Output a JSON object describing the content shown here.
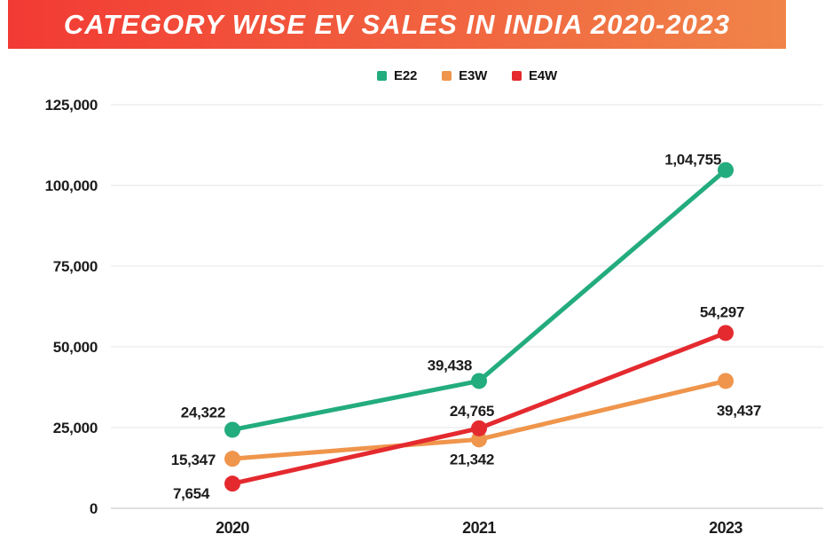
{
  "banner": {
    "gradient_left": "#f23a34",
    "gradient_right": "#f08448"
  },
  "chart_data": {
    "type": "line",
    "title": "CATEGORY WISE EV SALES IN INDIA 2020-2023",
    "categories": [
      "2020",
      "2021",
      "2023"
    ],
    "xlabel": "",
    "ylabel": "",
    "ylim": [
      0,
      125000
    ],
    "yticks": [
      0,
      25000,
      50000,
      75000,
      100000,
      125000
    ],
    "ytick_labels": [
      "0",
      "25,000",
      "50,000",
      "75,000",
      "100,000",
      "125,000"
    ],
    "grid": true,
    "legend_position": "top-center",
    "series": [
      {
        "name": "E22",
        "color": "#23ac7e",
        "label_color": "#1c1c1c",
        "values": [
          24322,
          39438,
          104755
        ],
        "labels": [
          "24,322",
          "39,438",
          "1,04,755"
        ],
        "label_anchor": [
          "end",
          "end",
          "end"
        ],
        "label_offset": [
          [
            -8,
            -14
          ],
          [
            -8,
            -12
          ],
          [
            -5,
            -6
          ]
        ]
      },
      {
        "name": "E3W",
        "color": "#ef954c",
        "label_color": "#eda25f",
        "values": [
          15347,
          21342,
          39437
        ],
        "labels": [
          "15,347",
          "21,342",
          "39,437"
        ],
        "label_anchor": [
          "end",
          "middle",
          "middle"
        ],
        "label_offset": [
          [
            -19,
            7
          ],
          [
            -8,
            28
          ],
          [
            15,
            39
          ]
        ]
      },
      {
        "name": "E4W",
        "color": "#e42a2f",
        "label_color": "#cf4b4e",
        "values": [
          7654,
          24765,
          54297
        ],
        "labels": [
          "7,654",
          "24,765",
          "54,297"
        ],
        "label_anchor": [
          "end",
          "middle",
          "middle"
        ],
        "label_offset": [
          [
            -26,
            17
          ],
          [
            -8,
            -14
          ],
          [
            -4,
            -18
          ]
        ]
      }
    ]
  }
}
